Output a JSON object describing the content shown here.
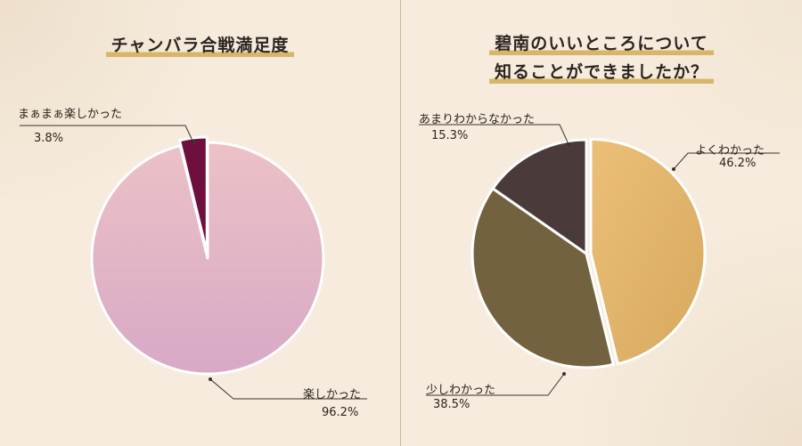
{
  "chart_data": [
    {
      "type": "pie",
      "title": "チャンバラ合戦満足度",
      "slices": [
        {
          "label": "楽しかった",
          "value": 96.2,
          "value_label": "96.2%",
          "color": "#e8b9c3"
        },
        {
          "label": "まぁまぁ楽しかった",
          "value": 3.8,
          "value_label": "3.8%",
          "color": "#6e0f3e"
        }
      ]
    },
    {
      "type": "pie",
      "title_lines": [
        "碧南のいいところについて",
        "知ることができましたか？"
      ],
      "slices": [
        {
          "label": "よくわかった",
          "value": 46.2,
          "value_label": "46.2%",
          "color": "#e0b36a"
        },
        {
          "label": "少しわかった",
          "value": 38.5,
          "value_label": "38.5%",
          "color": "#726240"
        },
        {
          "label": "あまりわからなかった",
          "value": 15.3,
          "value_label": "15.3%",
          "color": "#4a3b3a"
        }
      ]
    }
  ]
}
